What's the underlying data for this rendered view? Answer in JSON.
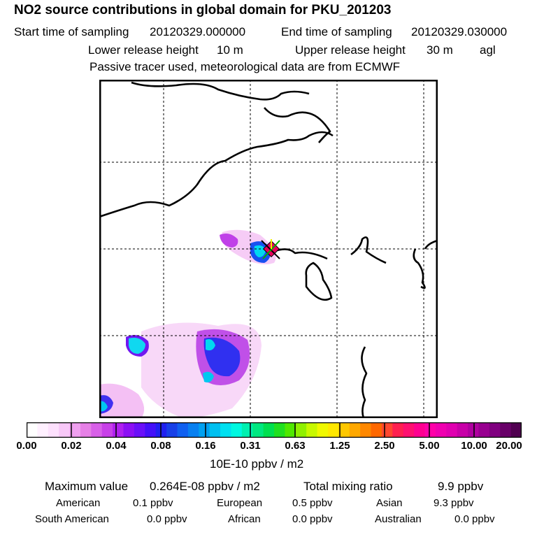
{
  "title": "NO2 source contributions in global domain for PKU_201203",
  "header": {
    "start_label": "Start time of sampling",
    "start_value": "20120329.000000",
    "end_label": "End time of sampling",
    "end_value": "20120329.030000",
    "lower_label": "Lower release height",
    "lower_value": "10 m",
    "upper_label": "Upper release height",
    "upper_value": "30 m",
    "upper_unit": "agl",
    "note": "Passive tracer used, meteorological data are from ECMWF"
  },
  "colorbar": {
    "tick_labels": [
      "0.00",
      "0.02",
      "0.04",
      "0.08",
      "0.16",
      "0.31",
      "0.63",
      "1.25",
      "2.50",
      "5.00",
      "10.00",
      "20.00"
    ],
    "unit": "10E-10 ppbv / m2",
    "colors": [
      "#ffffff",
      "#fff0ff",
      "#fde0fd",
      "#f8c8f8",
      "#f0a0f0",
      "#e680e6",
      "#d860e8",
      "#c840e8",
      "#b020f0",
      "#8c10f4",
      "#6a10f8",
      "#4410f8",
      "#2020f0",
      "#1840e8",
      "#1060f0",
      "#0880f0",
      "#00a0f0",
      "#00c0f0",
      "#00e0f0",
      "#00f8e0",
      "#00f0b0",
      "#00e880",
      "#00e050",
      "#20e020",
      "#50e800",
      "#90f000",
      "#c8f800",
      "#f0f800",
      "#ffe800",
      "#ffc800",
      "#ffa800",
      "#ff8800",
      "#ff6800",
      "#ff4830",
      "#ff2050",
      "#ff1070",
      "#ff0090",
      "#ff00a8",
      "#f000b0",
      "#e000b0",
      "#c800a8",
      "#b000a0",
      "#980090",
      "#800080",
      "#680068",
      "#500050"
    ]
  },
  "stats": {
    "max_label": "Maximum value",
    "max_value": "0.264E-08 ppbv / m2",
    "total_label": "Total mixing ratio",
    "total_value": "9.9 ppbv"
  },
  "regions": [
    {
      "name": "American",
      "value": "0.1 ppbv"
    },
    {
      "name": "European",
      "value": "0.5 ppbv"
    },
    {
      "name": "Asian",
      "value": "9.3 ppbv"
    },
    {
      "name": "South American",
      "value": "0.0 ppbv"
    },
    {
      "name": "African",
      "value": "0.0 ppbv"
    },
    {
      "name": "Australian",
      "value": "0.0 ppbv"
    }
  ]
}
